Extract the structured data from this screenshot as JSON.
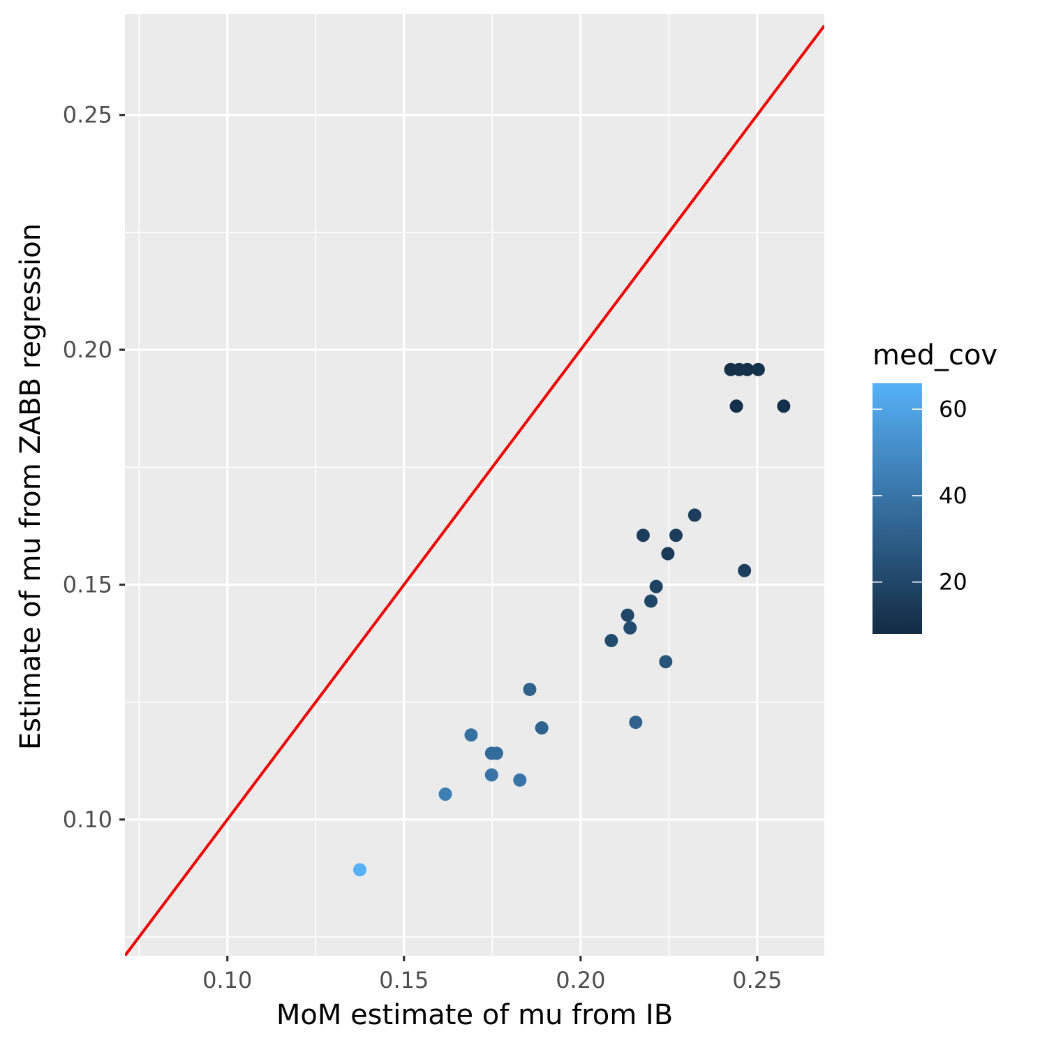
{
  "chart_data": {
    "type": "scatter",
    "title": "",
    "xlabel": "MoM estimate of mu from IB",
    "ylabel": "Estimate of mu from ZABB regression",
    "xlim": [
      0.071,
      0.269
    ],
    "ylim": [
      0.071,
      0.2715
    ],
    "x_ticks": [
      0.1,
      0.15,
      0.2,
      0.25
    ],
    "x_tick_labels": [
      "0.10",
      "0.15",
      "0.20",
      "0.25"
    ],
    "y_ticks": [
      0.1,
      0.15,
      0.2,
      0.25
    ],
    "y_tick_labels": [
      "0.10",
      "0.15",
      "0.20",
      "0.25"
    ],
    "grid": true,
    "reference_line": {
      "slope": 1,
      "intercept": 0,
      "color": "#ee0000"
    },
    "legend": {
      "title": "med_cov",
      "position": "right",
      "range": [
        8,
        66
      ],
      "ticks": [
        20,
        40,
        60
      ],
      "tick_labels": [
        "20",
        "40",
        "60"
      ],
      "color_low": "#132b43",
      "color_high": "#56b1f7"
    },
    "points": [
      {
        "x": 0.1375,
        "y": 0.0893,
        "med_cov": 66
      },
      {
        "x": 0.1617,
        "y": 0.1054,
        "med_cov": 44
      },
      {
        "x": 0.169,
        "y": 0.118,
        "med_cov": 38
      },
      {
        "x": 0.1748,
        "y": 0.1141,
        "med_cov": 36
      },
      {
        "x": 0.1762,
        "y": 0.1141,
        "med_cov": 36
      },
      {
        "x": 0.1748,
        "y": 0.1095,
        "med_cov": 40
      },
      {
        "x": 0.1828,
        "y": 0.1084,
        "med_cov": 40
      },
      {
        "x": 0.1856,
        "y": 0.1277,
        "med_cov": 32
      },
      {
        "x": 0.189,
        "y": 0.1195,
        "med_cov": 32
      },
      {
        "x": 0.2087,
        "y": 0.1381,
        "med_cov": 22
      },
      {
        "x": 0.2133,
        "y": 0.1435,
        "med_cov": 20
      },
      {
        "x": 0.214,
        "y": 0.1408,
        "med_cov": 22
      },
      {
        "x": 0.2156,
        "y": 0.1207,
        "med_cov": 32
      },
      {
        "x": 0.2177,
        "y": 0.1605,
        "med_cov": 16
      },
      {
        "x": 0.2199,
        "y": 0.1465,
        "med_cov": 20
      },
      {
        "x": 0.2214,
        "y": 0.1496,
        "med_cov": 18
      },
      {
        "x": 0.2241,
        "y": 0.1336,
        "med_cov": 26
      },
      {
        "x": 0.2247,
        "y": 0.1566,
        "med_cov": 14
      },
      {
        "x": 0.227,
        "y": 0.1605,
        "med_cov": 16
      },
      {
        "x": 0.2323,
        "y": 0.1648,
        "med_cov": 16
      },
      {
        "x": 0.2425,
        "y": 0.1958,
        "med_cov": 10
      },
      {
        "x": 0.2441,
        "y": 0.188,
        "med_cov": 10
      },
      {
        "x": 0.2449,
        "y": 0.1958,
        "med_cov": 10
      },
      {
        "x": 0.2464,
        "y": 0.153,
        "med_cov": 16
      },
      {
        "x": 0.2472,
        "y": 0.1958,
        "med_cov": 10
      },
      {
        "x": 0.2503,
        "y": 0.1958,
        "med_cov": 10
      },
      {
        "x": 0.2575,
        "y": 0.188,
        "med_cov": 10
      }
    ]
  }
}
